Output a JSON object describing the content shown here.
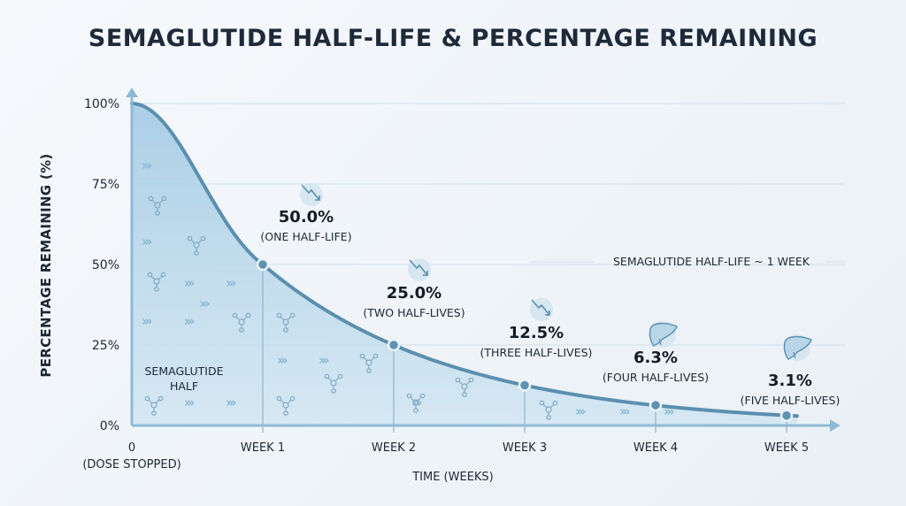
{
  "chart_data": {
    "type": "area",
    "title": "SEMAGLUTIDE HALF-LIFE & PERCENTAGE REMAINING",
    "xlabel": "TIME (WEEKS)",
    "ylabel": "PERCENTAGE REMAINING (%)",
    "x": [
      0,
      1,
      2,
      3,
      4,
      5
    ],
    "x_tick_labels": [
      "0",
      "WEEK 1",
      "WEEK 2",
      "WEEK 3",
      "WEEK 4",
      "WEEK 5"
    ],
    "x_tick_sublabel": "(DOSE STOPPED)",
    "y_ticks": [
      0,
      25,
      50,
      75,
      100
    ],
    "y_tick_labels": [
      "0%",
      "25%",
      "50%",
      "75%",
      "100%"
    ],
    "xlim": [
      0,
      5.4
    ],
    "ylim": [
      0,
      100
    ],
    "grid": true,
    "values": [
      100,
      50.0,
      25.0,
      12.5,
      6.3,
      3.1
    ],
    "annotations": [
      {
        "x": 1,
        "value_label": "50.0%",
        "desc": "(ONE HALF-LIFE)",
        "icon": "trend-down-icon"
      },
      {
        "x": 2,
        "value_label": "25.0%",
        "desc": "(TWO HALF-LIVES)",
        "icon": "trend-down-icon"
      },
      {
        "x": 3,
        "value_label": "12.5%",
        "desc": "(THREE HALF-LIVES)",
        "icon": "trend-down-icon"
      },
      {
        "x": 4,
        "value_label": "6.3%",
        "desc": "(FOUR HALF-LIVES)",
        "icon": "liver-icon"
      },
      {
        "x": 5,
        "value_label": "3.1%",
        "desc": "(FIVE HALF-LIVES)",
        "icon": "liver-icon"
      }
    ],
    "note": "SEMAGLUTIDE HALF-LIFE ~ 1 WEEK",
    "area_label_line1": "SEMAGLUTIDE",
    "area_label_line2": "HALF",
    "colors": {
      "line": "#5b8fb0",
      "fill": "#a9cfe6",
      "grid": "#d3dee8",
      "axis": "#8fbad6"
    }
  }
}
